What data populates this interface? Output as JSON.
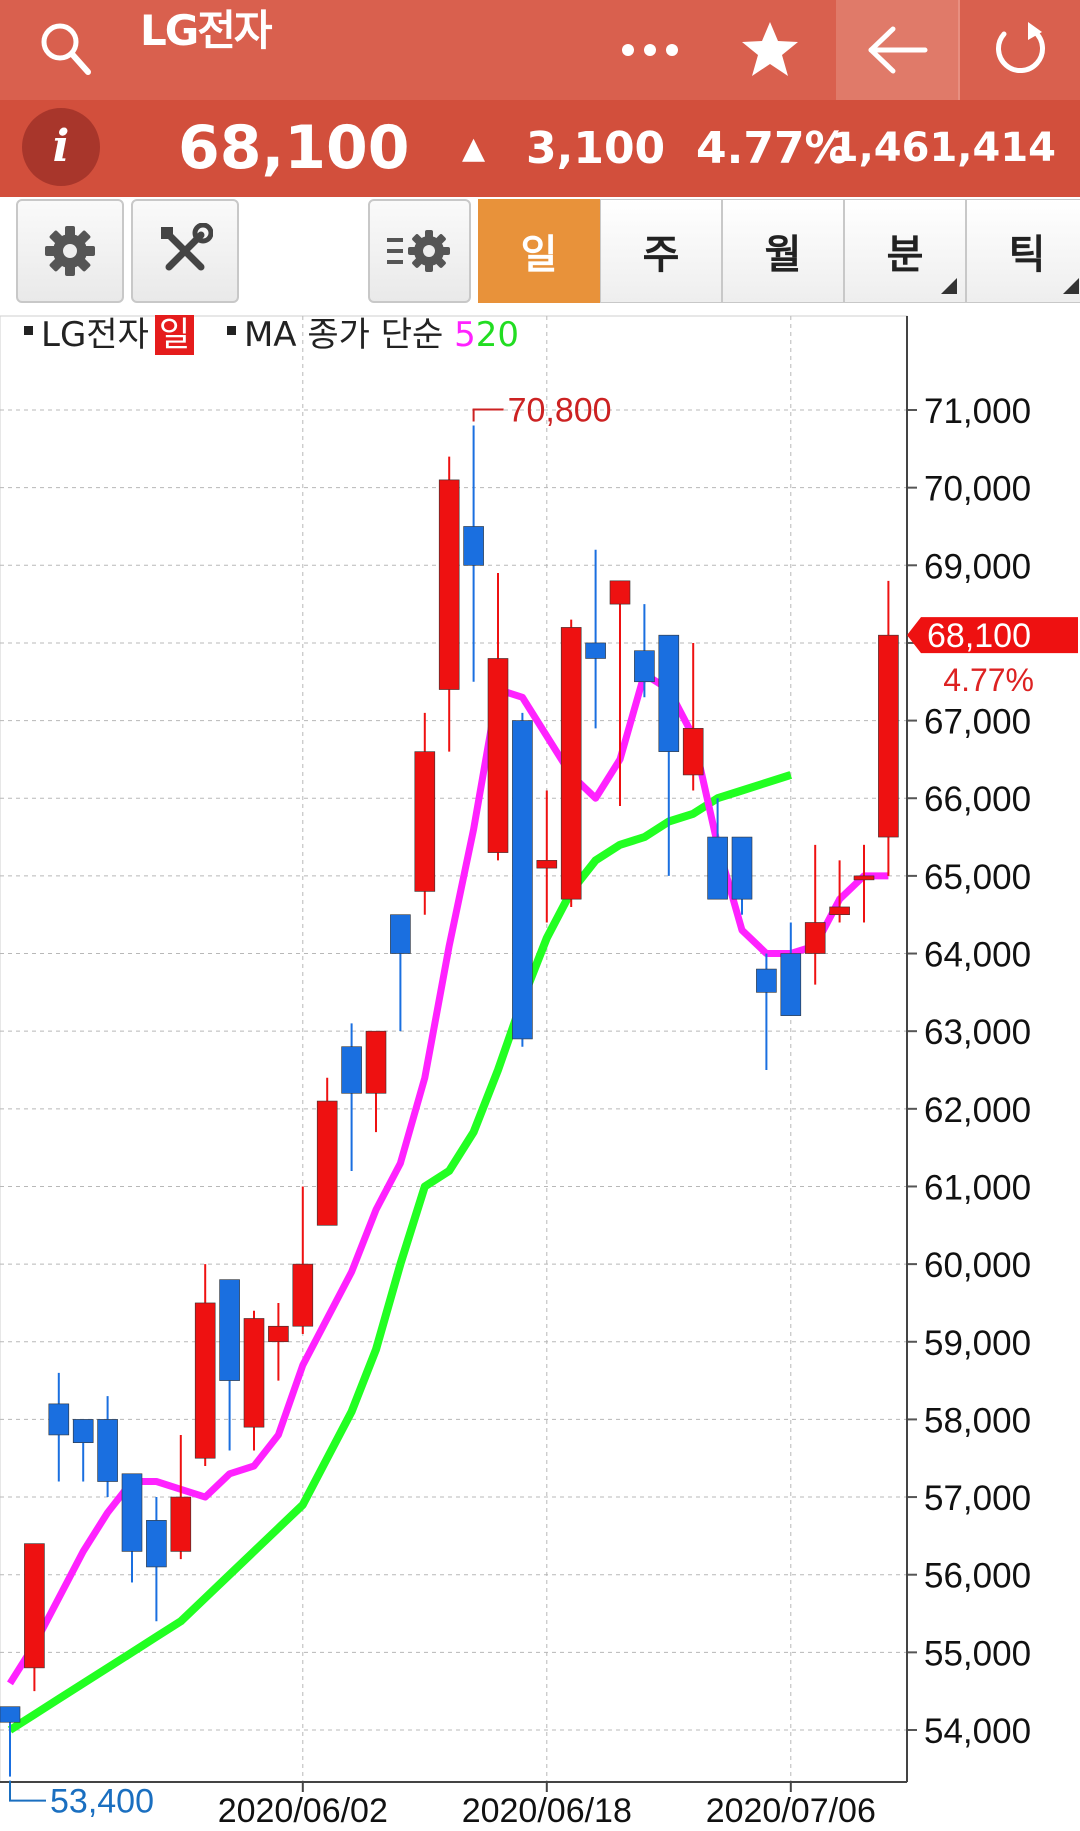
{
  "header": {
    "title": "LG전자",
    "search_icon": "search-icon",
    "more_icon": "more-icon",
    "star_icon": "star-icon",
    "back_icon": "back-arrow-icon",
    "refresh_icon": "refresh-icon"
  },
  "quote": {
    "info_label": "i",
    "price": "68,100",
    "direction": "▲",
    "change": "3,100",
    "change_pct": "4.77%",
    "volume": "1,461,414"
  },
  "toolbar": {
    "settings_icon": "gear-icon",
    "tools_icon": "tools-icon",
    "indicator_icon": "indicator-settings-icon",
    "periods": [
      "일",
      "주",
      "월",
      "분",
      "틱"
    ],
    "active_period": "일"
  },
  "legend": {
    "stock": "LG전자",
    "period_badge": "일",
    "ma_label": "MA 종가 단순",
    "ma_short": "5",
    "ma_long": "20"
  },
  "colors": {
    "header_bg": "#d9604e",
    "price_bar_bg": "#d24f3c",
    "active_period": "#e8923a",
    "up_candle": "#ee1111",
    "down_candle": "#1a6fe0",
    "ma5": "#ff22ff",
    "ma20": "#22ff22"
  },
  "chart_data": {
    "type": "candlestick",
    "y_ticks": [
      "71,000",
      "70,000",
      "69,000",
      "67,000",
      "66,000",
      "65,000",
      "64,000",
      "63,000",
      "62,000",
      "61,000",
      "60,000",
      "59,000",
      "58,000",
      "57,000",
      "56,000",
      "55,000",
      "54,000"
    ],
    "x_ticks": [
      "2020/06/02",
      "2020/06/18",
      "2020/07/06"
    ],
    "ylim": [
      53000,
      71500
    ],
    "high_label": "70,800",
    "low_label": "53,400",
    "last_price_label": "68,100",
    "last_pct_label": "4.77%",
    "candles": [
      {
        "o": 54300,
        "h": 54300,
        "l": 53400,
        "c": 54100
      },
      {
        "o": 54800,
        "h": 56400,
        "l": 54500,
        "c": 56400
      },
      {
        "o": 58200,
        "h": 58600,
        "l": 57200,
        "c": 57800
      },
      {
        "o": 58000,
        "h": 58000,
        "l": 57200,
        "c": 57700
      },
      {
        "o": 58000,
        "h": 58300,
        "l": 57000,
        "c": 57200
      },
      {
        "o": 57300,
        "h": 57300,
        "l": 55900,
        "c": 56300
      },
      {
        "o": 56700,
        "h": 57000,
        "l": 55400,
        "c": 56100
      },
      {
        "o": 56300,
        "h": 57800,
        "l": 56200,
        "c": 57000
      },
      {
        "o": 57500,
        "h": 60000,
        "l": 57400,
        "c": 59500
      },
      {
        "o": 59800,
        "h": 59800,
        "l": 57600,
        "c": 58500
      },
      {
        "o": 57900,
        "h": 59400,
        "l": 57600,
        "c": 59300
      },
      {
        "o": 59000,
        "h": 59500,
        "l": 58500,
        "c": 59200
      },
      {
        "o": 59200,
        "h": 61000,
        "l": 59100,
        "c": 60000
      },
      {
        "o": 60500,
        "h": 62400,
        "l": 60500,
        "c": 62100
      },
      {
        "o": 62800,
        "h": 63100,
        "l": 61200,
        "c": 62200
      },
      {
        "o": 62200,
        "h": 63000,
        "l": 61700,
        "c": 63000
      },
      {
        "o": 64500,
        "h": 64500,
        "l": 63000,
        "c": 64000
      },
      {
        "o": 64800,
        "h": 67100,
        "l": 64500,
        "c": 66600
      },
      {
        "o": 67400,
        "h": 70400,
        "l": 66600,
        "c": 70100
      },
      {
        "o": 69500,
        "h": 70800,
        "l": 67500,
        "c": 69000
      },
      {
        "o": 65300,
        "h": 68900,
        "l": 65200,
        "c": 67800
      },
      {
        "o": 67000,
        "h": 67100,
        "l": 62800,
        "c": 62900
      },
      {
        "o": 65100,
        "h": 66100,
        "l": 64400,
        "c": 65200
      },
      {
        "o": 64700,
        "h": 68300,
        "l": 64600,
        "c": 68200
      },
      {
        "o": 68000,
        "h": 69200,
        "l": 66900,
        "c": 67800
      },
      {
        "o": 68500,
        "h": 68800,
        "l": 65900,
        "c": 68800
      },
      {
        "o": 67900,
        "h": 68500,
        "l": 67300,
        "c": 67500
      },
      {
        "o": 68100,
        "h": 68100,
        "l": 65000,
        "c": 66600
      },
      {
        "o": 66300,
        "h": 68000,
        "l": 66100,
        "c": 66900
      },
      {
        "o": 65500,
        "h": 66000,
        "l": 64800,
        "c": 64700
      },
      {
        "o": 65500,
        "h": 65500,
        "l": 64500,
        "c": 64700
      },
      {
        "o": 63800,
        "h": 64000,
        "l": 62500,
        "c": 63500
      },
      {
        "o": 64000,
        "h": 64400,
        "l": 63200,
        "c": 63200
      },
      {
        "o": 64000,
        "h": 65400,
        "l": 63600,
        "c": 64400
      },
      {
        "o": 64500,
        "h": 65200,
        "l": 64400,
        "c": 64600
      },
      {
        "o": 65000,
        "h": 65400,
        "l": 64400,
        "c": 65000
      },
      {
        "o": 65500,
        "h": 68800,
        "l": 65000,
        "c": 68100
      }
    ],
    "series": [
      {
        "name": "5",
        "values": [
          54600,
          55100,
          55700,
          56300,
          56800,
          57200,
          57200,
          57100,
          57000,
          57300,
          57400,
          57800,
          58700,
          59300,
          59900,
          60700,
          61300,
          62400,
          64100,
          65600,
          67400,
          67300,
          66800,
          66300,
          66000,
          66500,
          67600,
          67400,
          66800,
          65400,
          64300,
          64000,
          64000,
          64100,
          64700,
          65000,
          65000
        ]
      },
      {
        "name": "20",
        "values": [
          54000,
          54200,
          54400,
          54600,
          54800,
          55000,
          55200,
          55400,
          55700,
          56000,
          56300,
          56600,
          56900,
          57500,
          58100,
          58900,
          60000,
          61000,
          61200,
          61700,
          62500,
          63400,
          64200,
          64800,
          65200,
          65400,
          65500,
          65700,
          65800,
          66000,
          66100,
          66200,
          66300
        ]
      }
    ]
  }
}
